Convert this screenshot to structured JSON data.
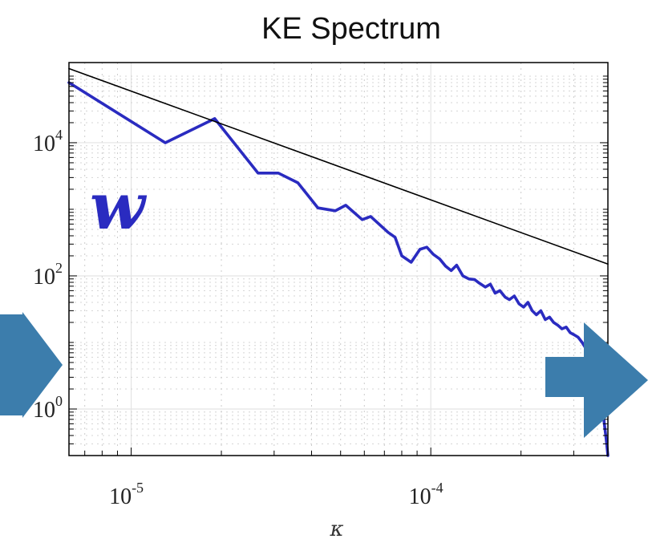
{
  "chart_data": {
    "type": "line",
    "title": "KE Spectrum",
    "xlabel": "κ",
    "ylabel": "",
    "x_scale": "log",
    "y_scale": "log",
    "xlim": [
      6.2e-06,
      0.00039
    ],
    "ylim": [
      0.2,
      160000.0
    ],
    "grid": true,
    "x_ticks": [
      {
        "value": 1e-05,
        "base": "10",
        "exp": "-5"
      },
      {
        "value": 0.0001,
        "base": "10",
        "exp": "-4"
      }
    ],
    "y_ticks": [
      {
        "value": 1,
        "base": "10",
        "exp": "0"
      },
      {
        "value": 100,
        "base": "10",
        "exp": "2"
      },
      {
        "value": 10000,
        "base": "10",
        "exp": "4"
      }
    ],
    "annotation": "w",
    "series": [
      {
        "color": "#2a2bc0",
        "x": [
          6.2e-06,
          1.3e-05,
          1.9e-05,
          2.65e-05,
          3.1e-05,
          3.6e-05,
          4.2e-05,
          4.8e-05,
          5.2e-05,
          5.9e-05,
          6.3e-05,
          7.2e-05,
          7.6e-05,
          8e-05,
          8.6e-05,
          9.2e-05,
          9.7e-05,
          0.000102,
          0.000107,
          0.000112,
          0.000117,
          0.000122,
          0.000128,
          0.000134,
          0.00014,
          0.000145,
          0.000152,
          0.000158,
          0.000164,
          0.00017,
          0.000177,
          0.000183,
          0.00019,
          0.000197,
          0.000204,
          0.000211,
          0.000218,
          0.000225,
          0.000233,
          0.000241,
          0.000249,
          0.000257,
          0.000266,
          0.000274,
          0.000283,
          0.000292,
          0.000301,
          0.00031,
          0.00032,
          0.00033,
          0.00034,
          0.00035,
          0.00036,
          0.00037,
          0.000378,
          0.000385,
          0.00039
        ],
        "y": [
          80000,
          10000,
          23000,
          3500,
          3500,
          2500,
          1050,
          950,
          1150,
          700,
          780,
          450,
          380,
          200,
          160,
          250,
          270,
          210,
          180,
          140,
          120,
          145,
          100,
          90,
          88,
          78,
          68,
          75,
          55,
          60,
          48,
          44,
          50,
          38,
          34,
          40,
          30,
          26,
          30,
          22,
          24,
          20,
          18,
          16,
          17,
          14,
          13,
          12,
          10,
          8,
          7,
          5,
          3,
          1.5,
          0.7,
          0.35,
          0.2
        ]
      },
      {
        "color": "#000000",
        "x": [
          6.2e-06,
          0.00039
        ],
        "y": [
          130000,
          150
        ]
      }
    ]
  },
  "arrows": {
    "color": "#3c7dac"
  }
}
